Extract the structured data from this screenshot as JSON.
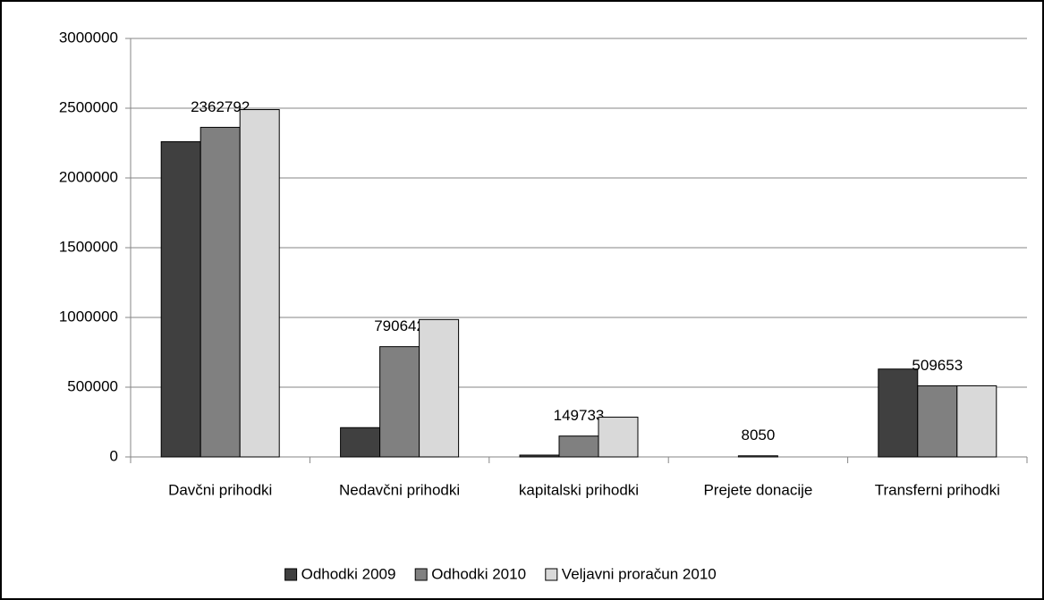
{
  "chart_data": {
    "type": "bar",
    "categories": [
      "Davčni prihodki",
      "Nedavčni prihodki",
      "kapitalski prihodki",
      "Prejete donacije",
      "Transferni prihodki"
    ],
    "series": [
      {
        "name": "Odhodki 2009",
        "color": "#404040",
        "values": [
          2260000,
          210000,
          13000,
          0,
          630000
        ]
      },
      {
        "name": "Odhodki 2010",
        "color": "#808080",
        "values": [
          2362792,
          790642,
          149733,
          8050,
          509653
        ],
        "labels": true
      },
      {
        "name": "Veljavni proračun 2010",
        "color": "#d9d9d9",
        "values": [
          2490000,
          985000,
          285000,
          0,
          510000
        ]
      }
    ],
    "ylim": [
      0,
      3000000
    ],
    "yticks": [
      0,
      500000,
      1000000,
      1500000,
      2000000,
      2500000,
      3000000
    ],
    "grid": true,
    "legend": "bottom"
  }
}
